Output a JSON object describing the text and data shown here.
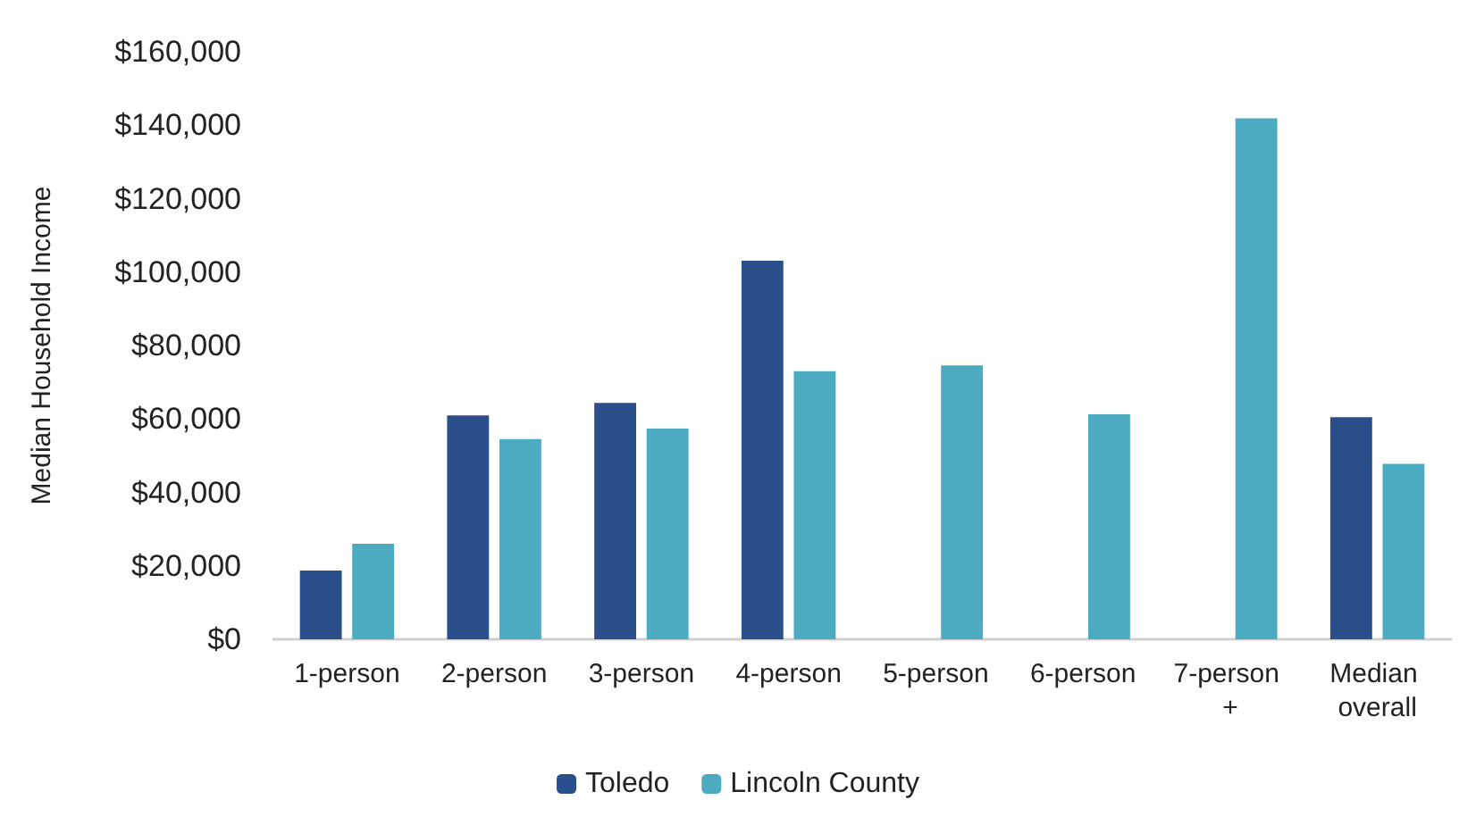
{
  "chart_data": {
    "type": "bar",
    "ylabel": "Median Household Income",
    "categories": [
      "1-person",
      "2-person",
      "3-person",
      "4-person",
      "5-person",
      "6-person",
      "7-person +",
      "Median overall"
    ],
    "series": [
      {
        "name": "Toledo",
        "color": "#2b4f8a",
        "values": [
          18700,
          61000,
          64400,
          103100,
          null,
          null,
          null,
          60500
        ]
      },
      {
        "name": "Lincoln County",
        "color": "#4cabc0",
        "values": [
          26000,
          54500,
          57400,
          73000,
          74600,
          61300,
          141900,
          47800
        ]
      }
    ],
    "ylim": [
      0,
      160000
    ],
    "yticks": [
      {
        "value": 0,
        "label": "$0"
      },
      {
        "value": 20000,
        "label": "$20,000"
      },
      {
        "value": 40000,
        "label": "$40,000"
      },
      {
        "value": 60000,
        "label": "$60,000"
      },
      {
        "value": 80000,
        "label": "$80,000"
      },
      {
        "value": 100000,
        "label": "$100,000"
      },
      {
        "value": 120000,
        "label": "$120,000"
      },
      {
        "value": 140000,
        "label": "$140,000"
      },
      {
        "value": 160000,
        "label": "$160,000"
      }
    ],
    "grid": false,
    "legend": "bottom"
  }
}
